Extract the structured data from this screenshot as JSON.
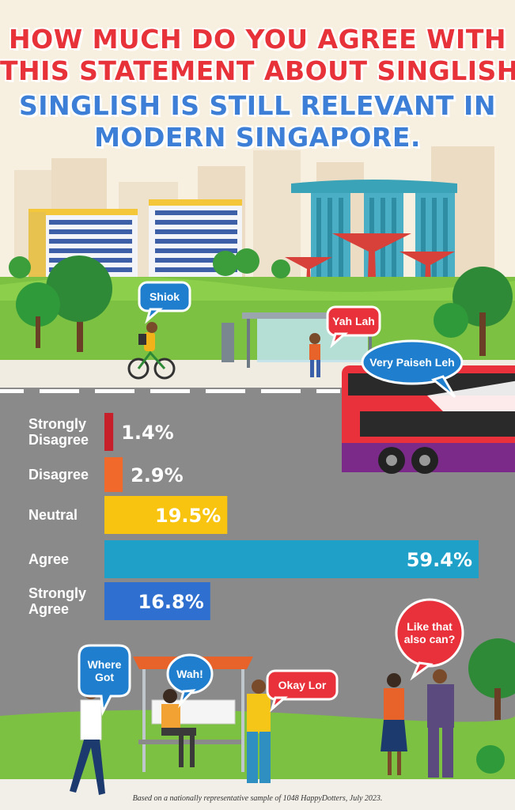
{
  "title": {
    "line1": "HOW MUCH DO YOU AGREE WITH",
    "line2": "THIS STATEMENT ABOUT SINGLISH?",
    "line3": "SINGLISH IS STILL RELEVANT IN",
    "line4": "MODERN SINGAPORE."
  },
  "bubbles": {
    "shiok": "Shiok",
    "yah_lah": "Yah Lah",
    "very_paiseh": "Very Paiseh Leh",
    "where_got_1": "Where",
    "where_got_2": "Got",
    "wah": "Wah!",
    "okay_lor": "Okay Lor",
    "like_that_1": "Like that",
    "like_that_2": "also can?"
  },
  "colors": {
    "strongly_disagree": "#c8202b",
    "disagree": "#f26a2b",
    "neutral": "#f9c40f",
    "agree": "#1fa0c9",
    "strongly_agree": "#2f6fcf",
    "road": "#8a8a8a"
  },
  "chart_data": {
    "type": "bar",
    "orientation": "horizontal",
    "categories": [
      "Strongly Disagree",
      "Disagree",
      "Neutral",
      "Agree",
      "Strongly Agree"
    ],
    "category_lines": [
      [
        "Strongly",
        "Disagree"
      ],
      [
        "Disagree"
      ],
      [
        "Neutral"
      ],
      [
        "Agree"
      ],
      [
        "Strongly",
        "Agree"
      ]
    ],
    "values": [
      1.4,
      2.9,
      19.5,
      59.4,
      16.8
    ],
    "value_labels": [
      "1.4%",
      "2.9%",
      "19.5%",
      "59.4%",
      "16.8%"
    ],
    "unit": "%",
    "grid": false
  },
  "footnote": "Based on a nationally representative sample of 1048 HappyDotters, July 2023."
}
